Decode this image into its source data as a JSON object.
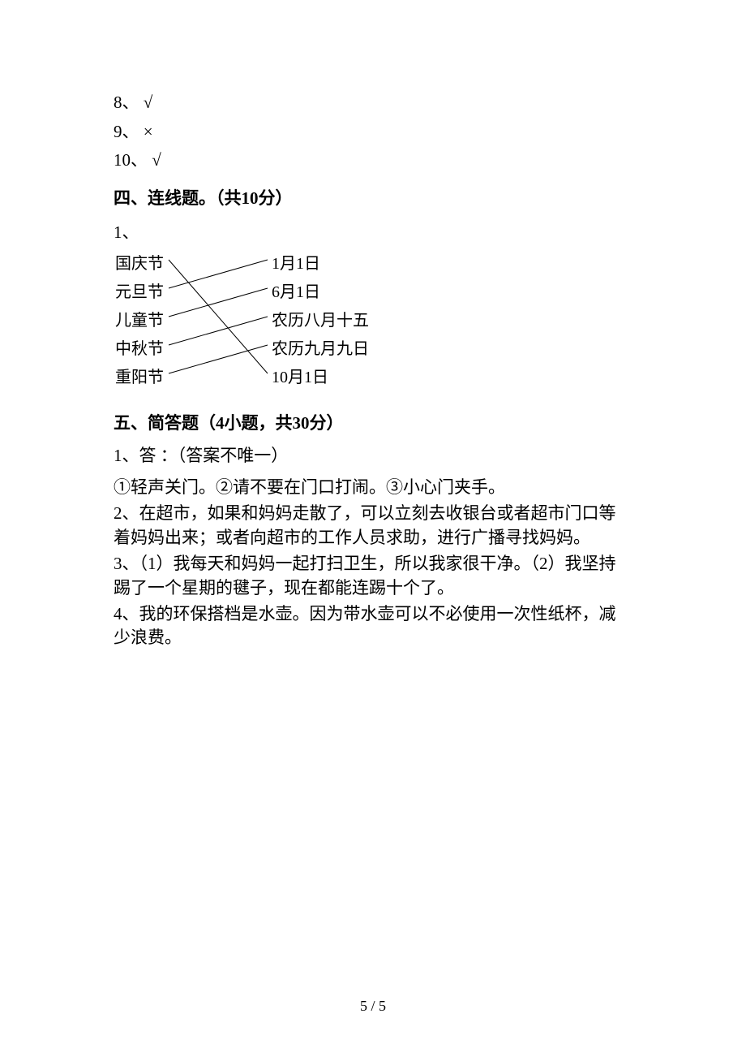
{
  "tf": {
    "items": [
      {
        "num": "8、",
        "mark": "√"
      },
      {
        "num": "9、",
        "mark": "×"
      },
      {
        "num": "10、",
        "mark": "√"
      }
    ]
  },
  "section4": {
    "heading": "四、连线题。（共10分）",
    "q1_label": "1、",
    "left": [
      "国庆节",
      "元旦节",
      "儿童节",
      "中秋节",
      "重阳节"
    ],
    "right": [
      "1月1日",
      "6月1日",
      "农历八月十五",
      "农历九月九日",
      "10月1日"
    ],
    "lines": [
      {
        "from": 0,
        "to": 4
      },
      {
        "from": 1,
        "to": 0
      },
      {
        "from": 2,
        "to": 1
      },
      {
        "from": 3,
        "to": 2
      },
      {
        "from": 4,
        "to": 3
      }
    ],
    "line_color": "#000000",
    "line_width": 1,
    "font_size": 20,
    "text_color": "#000000"
  },
  "section5": {
    "heading": "五、简答题（4小题，共30分）",
    "a1_line1": "1、答 ：（答案不唯一）",
    "a1_line2": "①轻声关门。②请不要在门口打闹。③小心门夹手。",
    "a2": "2、在超市，如果和妈妈走散了，可以立刻去收银台或者超市门口等着妈妈出来；或者向超市的工作人员求助，进行广播寻找妈妈。",
    "a3": "3、（1）我每天和妈妈一起打扫卫生，所以我家很干净。（2）我坚持踢了一个星期的毽子，现在都能连踢十个了。",
    "a4": "4、我的环保搭档是水壶。因为带水壶可以不必使用一次性纸杯，减少浪费。"
  },
  "page_number": "5 / 5",
  "styles": {
    "background_color": "#ffffff",
    "body_font_size": 21,
    "heading_font_weight": "bold",
    "text_color": "#000000"
  }
}
